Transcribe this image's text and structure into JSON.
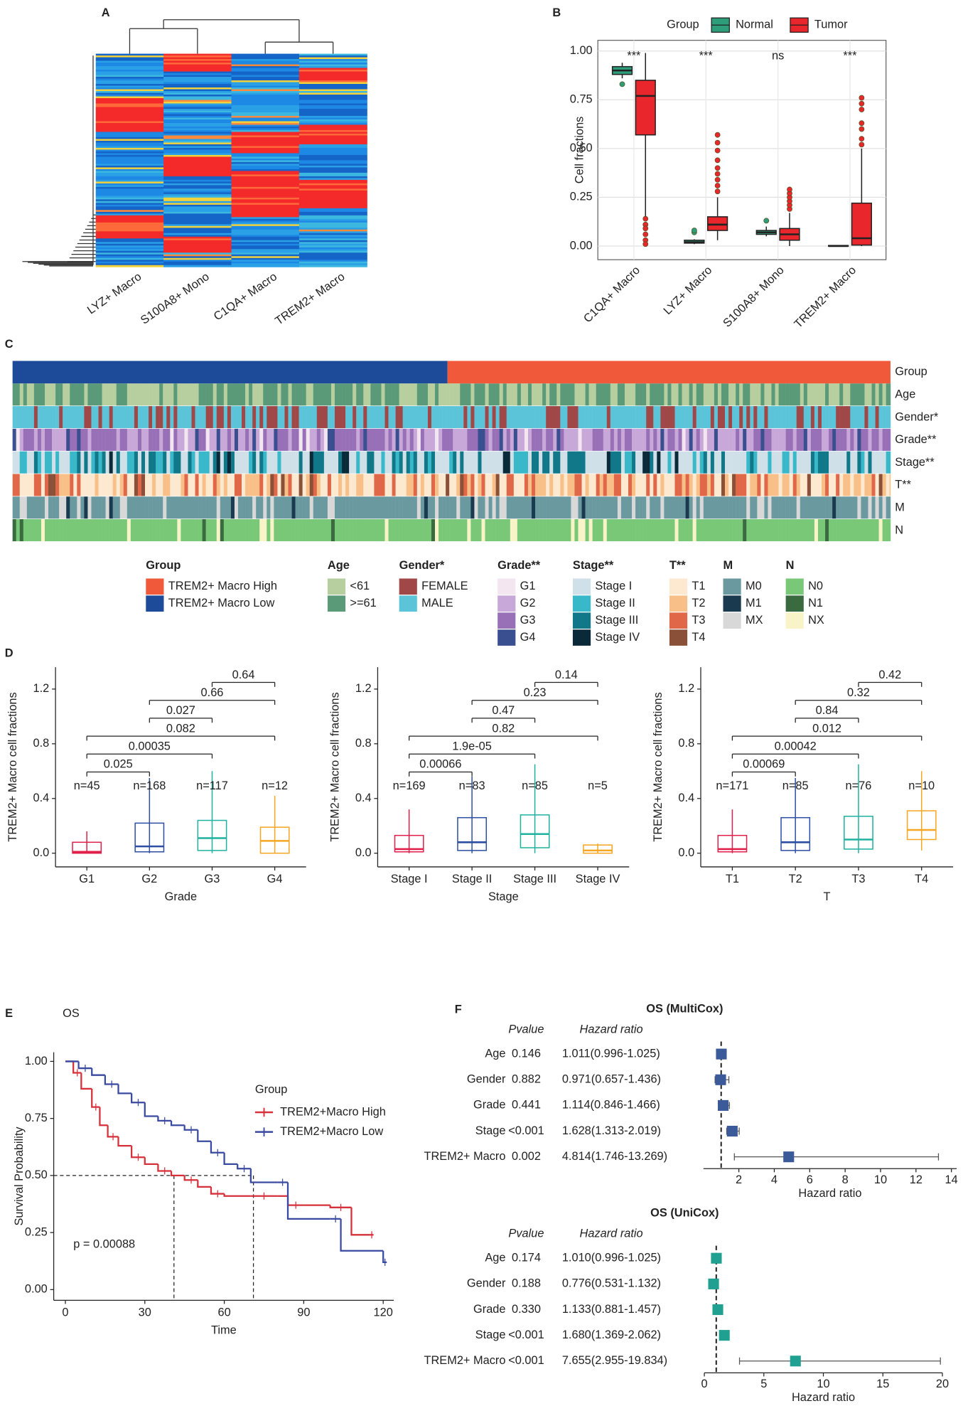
{
  "chart_data": [
    {
      "label": "A",
      "type": "heatmap",
      "columns": [
        "LYZ+ Macro",
        "S100A8+ Mono",
        "C1QA+ Macro",
        "TREM2+ Macro"
      ]
    },
    {
      "label": "B",
      "type": "grouped-box",
      "legend_title": "Group",
      "y_label": "Cell fractions",
      "categories": [
        "C1QA+ Macro",
        "LYZ+ Macro",
        "S100A8+ Mono",
        "TREM2+ Macro"
      ],
      "annotations": [
        "***",
        "***",
        "ns",
        "***"
      ],
      "ylim": [
        -0.07,
        1.055
      ],
      "yticks": [
        {
          "value": 0,
          "label": "0.00"
        },
        0.25,
        {
          "value": 0.5,
          "label": "0.50"
        },
        0.75,
        {
          "value": 1,
          "label": "1.00"
        }
      ],
      "grid": true,
      "series": [
        {
          "name": "Normal",
          "color": "#2e9e7a",
          "boxes": [
            {
              "low": 0.86,
              "q1": 0.88,
              "median": 0.9,
              "q3": 0.92,
              "high": 0.94,
              "outliers": [
                0.83
              ]
            },
            {
              "low": 0.01,
              "q1": 0.015,
              "median": 0.02,
              "q3": 0.03,
              "high": 0.035,
              "outliers": [
                0.07,
                0.08
              ]
            },
            {
              "low": 0.05,
              "q1": 0.06,
              "median": 0.07,
              "q3": 0.08,
              "high": 0.1,
              "outliers": [
                0.13
              ]
            },
            {
              "low": 0,
              "q1": 0,
              "median": 0,
              "q3": 0.003,
              "high": 0.005,
              "outliers": []
            }
          ]
        },
        {
          "name": "Tumor",
          "color": "#e8262c",
          "boxes": [
            {
              "low": 0.15,
              "q1": 0.57,
              "median": 0.77,
              "q3": 0.85,
              "high": 0.99,
              "outliers": [
                0.14,
                0.11,
                0.09,
                0.06,
                0.03,
                0.01
              ]
            },
            {
              "low": 0.03,
              "q1": 0.08,
              "median": 0.11,
              "q3": 0.15,
              "high": 0.25,
              "outliers": [
                0.28,
                0.31,
                0.34,
                0.37,
                0.4,
                0.44,
                0.49,
                0.53,
                0.57
              ]
            },
            {
              "low": 0,
              "q1": 0.03,
              "median": 0.06,
              "q3": 0.09,
              "high": 0.17,
              "outliers": [
                0.19,
                0.21,
                0.23,
                0.25,
                0.27,
                0.29
              ]
            },
            {
              "low": 0,
              "q1": 0.005,
              "median": 0.04,
              "q3": 0.22,
              "high": 0.5,
              "outliers": [
                0.52,
                0.55,
                0.6,
                0.63,
                0.7,
                0.73,
                0.76
              ]
            }
          ]
        }
      ]
    },
    {
      "label": "C",
      "type": "annotation-heatmap",
      "tracks": [
        {
          "title": "Group",
          "items": [
            {
              "label": "TREM2+ Macro High",
              "color": "#f05a3a"
            },
            {
              "label": "TREM2+ Macro Low",
              "color": "#1e4a9a"
            }
          ]
        },
        {
          "title": "Age",
          "items": [
            {
              "label": "<61",
              "color": "#b7cf9f"
            },
            {
              "label": ">=61",
              "color": "#5a9a78"
            }
          ]
        },
        {
          "title": "Gender*",
          "items": [
            {
              "label": "FEMALE",
              "color": "#a04848"
            },
            {
              "label": "MALE",
              "color": "#5bc4d8"
            }
          ]
        },
        {
          "title": "Grade**",
          "items": [
            {
              "label": "G1",
              "color": "#f3e6f0"
            },
            {
              "label": "G2",
              "color": "#c8a8d8"
            },
            {
              "label": "G3",
              "color": "#9870b8"
            },
            {
              "label": "G4",
              "color": "#3a4f90"
            }
          ]
        },
        {
          "title": "Stage**",
          "items": [
            {
              "label": "Stage I",
              "color": "#d0e0e8"
            },
            {
              "label": "Stage II",
              "color": "#38b8c8"
            },
            {
              "label": "Stage III",
              "color": "#107888"
            },
            {
              "label": "Stage IV",
              "color": "#0a2a3a"
            }
          ]
        },
        {
          "title": "T**",
          "items": [
            {
              "label": "T1",
              "color": "#fde8d0"
            },
            {
              "label": "T2",
              "color": "#f8c088"
            },
            {
              "label": "T3",
              "color": "#e06848"
            },
            {
              "label": "T4",
              "color": "#8a5038"
            }
          ]
        },
        {
          "title": "M",
          "items": [
            {
              "label": "M0",
              "color": "#6a9aa0"
            },
            {
              "label": "M1",
              "color": "#1a3a50"
            },
            {
              "label": "MX",
              "color": "#d8d8d8"
            }
          ]
        },
        {
          "title": "N",
          "items": [
            {
              "label": "N0",
              "color": "#78c878"
            },
            {
              "label": "N1",
              "color": "#3a6a40"
            },
            {
              "label": "NX",
              "color": "#f8f4c8"
            }
          ]
        }
      ]
    },
    {
      "label": "D",
      "type": "box",
      "x_label": "Grade",
      "y_label": "TREM2+ Macro cell fractions",
      "categories": [
        "G1",
        "G2",
        "G3",
        "G4"
      ],
      "colors": [
        "#e0204a",
        "#2c4fa3",
        "#20b2a0",
        "#f5a623"
      ],
      "n_labels": [
        "n=45",
        "n=168",
        "n=117",
        "n=12"
      ],
      "ylim": [
        -0.1,
        1.36
      ],
      "yticks": [
        {
          "value": 0,
          "label": "0.0"
        },
        0.4,
        0.8,
        1.2
      ],
      "boxes": [
        {
          "low": 0,
          "q1": 0,
          "median": 0.01,
          "q3": 0.08,
          "high": 0.16
        },
        {
          "low": 0,
          "q1": 0.01,
          "median": 0.05,
          "q3": 0.22,
          "high": 0.55
        },
        {
          "low": 0,
          "q1": 0.02,
          "median": 0.11,
          "q3": 0.24,
          "high": 0.6
        },
        {
          "low": 0,
          "q1": 0,
          "median": 0.09,
          "q3": 0.19,
          "high": 0.42
        }
      ],
      "comparisons": [
        {
          "pair": [
            "G1",
            "G2"
          ],
          "p": "0.025"
        },
        {
          "pair": [
            "G1",
            "G3"
          ],
          "p": "0.00035"
        },
        {
          "pair": [
            "G1",
            "G4"
          ],
          "p": "0.082"
        },
        {
          "pair": [
            "G2",
            "G3"
          ],
          "p": "0.027"
        },
        {
          "pair": [
            "G2",
            "G4"
          ],
          "p": "0.66"
        },
        {
          "pair": [
            "G3",
            "G4"
          ],
          "p": "0.64"
        }
      ]
    },
    {
      "type": "box",
      "x_label": "Stage",
      "y_label": "TREM2+ Macro cell fractions",
      "categories": [
        "Stage I",
        "Stage II",
        "Stage III",
        "Stage IV"
      ],
      "colors": [
        "#e0204a",
        "#2c4fa3",
        "#20b2a0",
        "#f5a623"
      ],
      "n_labels": [
        "n=169",
        "n=83",
        "n=85",
        "n=5"
      ],
      "ylim": [
        -0.1,
        1.36
      ],
      "yticks": [
        {
          "value": 0,
          "label": "0.0"
        },
        0.4,
        0.8,
        1.2
      ],
      "boxes": [
        {
          "low": 0,
          "q1": 0.01,
          "median": 0.03,
          "q3": 0.13,
          "high": 0.32
        },
        {
          "low": 0,
          "q1": 0.02,
          "median": 0.08,
          "q3": 0.26,
          "high": 0.56
        },
        {
          "low": 0,
          "q1": 0.04,
          "median": 0.14,
          "q3": 0.28,
          "high": 0.65
        },
        {
          "low": 0,
          "q1": 0,
          "median": 0.02,
          "q3": 0.06,
          "high": 0.07
        }
      ],
      "comparisons": [
        {
          "pair": [
            "Stage I",
            "Stage II"
          ],
          "p": "0.00066"
        },
        {
          "pair": [
            "Stage I",
            "Stage III"
          ],
          "p": "1.9e-05"
        },
        {
          "pair": [
            "Stage I",
            "Stage IV"
          ],
          "p": "0.82"
        },
        {
          "pair": [
            "Stage II",
            "Stage III"
          ],
          "p": "0.47"
        },
        {
          "pair": [
            "Stage II",
            "Stage IV"
          ],
          "p": "0.23"
        },
        {
          "pair": [
            "Stage III",
            "Stage IV"
          ],
          "p": "0.14"
        }
      ]
    },
    {
      "type": "box",
      "x_label": "T",
      "y_label": "TREM2+ Macro cell fractions",
      "categories": [
        "T1",
        "T2",
        "T3",
        "T4"
      ],
      "colors": [
        "#e0204a",
        "#2c4fa3",
        "#20b2a0",
        "#f5a623"
      ],
      "n_labels": [
        "n=171",
        "n=85",
        "n=76",
        "n=10"
      ],
      "ylim": [
        -0.1,
        1.36
      ],
      "yticks": [
        {
          "value": 0,
          "label": "0.0"
        },
        0.4,
        0.8,
        1.2
      ],
      "boxes": [
        {
          "low": 0,
          "q1": 0.01,
          "median": 0.03,
          "q3": 0.13,
          "high": 0.32
        },
        {
          "low": 0,
          "q1": 0.02,
          "median": 0.08,
          "q3": 0.26,
          "high": 0.55
        },
        {
          "low": 0,
          "q1": 0.03,
          "median": 0.1,
          "q3": 0.27,
          "high": 0.65
        },
        {
          "low": 0.02,
          "q1": 0.1,
          "median": 0.17,
          "q3": 0.31,
          "high": 0.6
        }
      ],
      "comparisons": [
        {
          "pair": [
            "T1",
            "T2"
          ],
          "p": "0.00069"
        },
        {
          "pair": [
            "T1",
            "T3"
          ],
          "p": "0.00042"
        },
        {
          "pair": [
            "T1",
            "T4"
          ],
          "p": "0.012"
        },
        {
          "pair": [
            "T2",
            "T3"
          ],
          "p": "0.84"
        },
        {
          "pair": [
            "T2",
            "T4"
          ],
          "p": "0.32"
        },
        {
          "pair": [
            "T3",
            "T4"
          ],
          "p": "0.42"
        }
      ]
    },
    {
      "label": "E",
      "type": "km",
      "title": "OS",
      "x_label": "Time",
      "y_label": "Survival Probability",
      "legend_title": "Group",
      "annotation": "p = 0.00088",
      "xlim": [
        -4.4,
        124
      ],
      "xticks": [
        0,
        30,
        60,
        90,
        120
      ],
      "ylim": [
        -0.047,
        1.04
      ],
      "yticks": [
        {
          "value": 0,
          "label": "0.00"
        },
        0.25,
        {
          "value": 0.5,
          "label": "0.50"
        },
        0.75,
        {
          "value": 1,
          "label": "1.00"
        }
      ],
      "median_line": {
        "y": 0.5,
        "x": [
          41,
          71
        ]
      },
      "series": [
        {
          "name": "TREM2+Macro High",
          "color": "#d6303a",
          "x": [
            0,
            3,
            6,
            10,
            13,
            16,
            20,
            25,
            30,
            35,
            40,
            45,
            50,
            55,
            60,
            70,
            80,
            84,
            90,
            100,
            108,
            115
          ],
          "values": [
            1,
            0.95,
            0.88,
            0.8,
            0.72,
            0.67,
            0.63,
            0.58,
            0.55,
            0.52,
            0.5,
            0.48,
            0.45,
            0.42,
            0.41,
            0.41,
            0.41,
            0.37,
            0.37,
            0.36,
            0.24,
            0.24
          ]
        },
        {
          "name": "TREM2+Macro Low",
          "color": "#3a4aa0",
          "x": [
            0,
            5,
            10,
            15,
            20,
            25,
            30,
            35,
            40,
            45,
            50,
            55,
            60,
            65,
            70,
            80,
            84,
            100,
            104,
            120
          ],
          "values": [
            1,
            0.97,
            0.94,
            0.9,
            0.86,
            0.82,
            0.76,
            0.74,
            0.72,
            0.7,
            0.65,
            0.6,
            0.55,
            0.53,
            0.47,
            0.47,
            0.31,
            0.31,
            0.17,
            0.12
          ]
        }
      ]
    },
    {
      "label": "F",
      "type": "forest",
      "title": "OS (MultiCox)",
      "columns": [
        "Pvalue",
        "Hazard ratio"
      ],
      "x_label": "Hazard ratio",
      "color": "#3a5a9a",
      "rows": [
        "Age",
        "Gender",
        "Grade",
        "Stage",
        "TREM2+ Macro"
      ],
      "pvalues": [
        "0.146",
        "0.882",
        "0.441",
        "<0.001",
        "0.002"
      ],
      "hr_labels": [
        "1.011(0.996-1.025)",
        "0.971(0.657-1.436)",
        "1.114(0.846-1.466)",
        "1.628(1.313-2.019)",
        "4.814(1.746-13.269)"
      ],
      "hr": [
        1.011,
        0.971,
        1.114,
        1.628,
        4.814
      ],
      "lo": [
        0.996,
        0.657,
        0.846,
        1.313,
        1.746
      ],
      "hi": [
        1.025,
        1.436,
        1.466,
        2.019,
        13.269
      ],
      "reference": 1,
      "xlim": [
        0,
        14.3
      ],
      "xticks": [
        2,
        4,
        6,
        8,
        10,
        12,
        14
      ]
    },
    {
      "type": "forest",
      "title": "OS (UniCox)",
      "columns": [
        "Pvalue",
        "Hazard ratio"
      ],
      "x_label": "Hazard ratio",
      "color": "#20a090",
      "rows": [
        "Age",
        "Gender",
        "Grade",
        "Stage",
        "TREM2+ Macro"
      ],
      "pvalues": [
        "0.174",
        "0.188",
        "0.330",
        "<0.001",
        "<0.001"
      ],
      "hr_labels": [
        "1.010(0.996-1.025)",
        "0.776(0.531-1.132)",
        "1.133(0.881-1.457)",
        "1.680(1.369-2.062)",
        "7.655(2.955-19.834)"
      ],
      "hr": [
        1.01,
        0.776,
        1.133,
        1.68,
        7.655
      ],
      "lo": [
        0.996,
        0.531,
        0.881,
        1.369,
        2.955
      ],
      "hi": [
        1.025,
        1.132,
        1.457,
        2.062,
        19.834
      ],
      "reference": 1,
      "xlim": [
        0,
        20
      ],
      "xticks": [
        0,
        5,
        10,
        15,
        20
      ]
    }
  ]
}
